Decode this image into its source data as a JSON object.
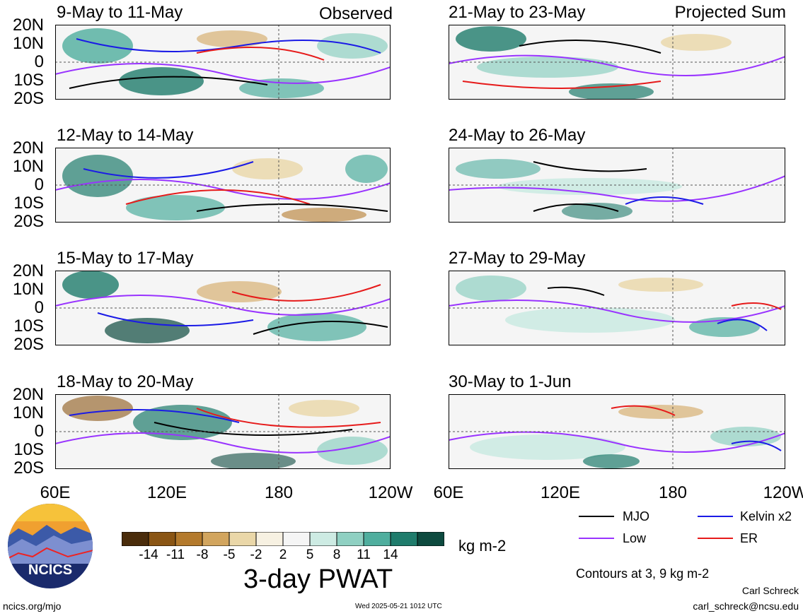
{
  "panels_left": [
    {
      "title": "9-May to 11-May",
      "tag": "Observed"
    },
    {
      "title": "12-May to 14-May",
      "tag": ""
    },
    {
      "title": "15-May to 17-May",
      "tag": ""
    },
    {
      "title": "18-May to 20-May",
      "tag": ""
    }
  ],
  "panels_right": [
    {
      "title": "21-May to 23-May",
      "tag": "Projected Sum"
    },
    {
      "title": "24-May to 26-May",
      "tag": ""
    },
    {
      "title": "27-May to 29-May",
      "tag": ""
    },
    {
      "title": "30-May to 1-Jun",
      "tag": ""
    }
  ],
  "lat_labels": [
    "20N",
    "10N",
    "0",
    "10S",
    "20S"
  ],
  "lon_labels": [
    "60E",
    "120E",
    "180",
    "120W"
  ],
  "lon_labels_right": [
    "60E",
    "120E",
    "180",
    "120W"
  ],
  "colorbar": {
    "ticks": [
      "-14",
      "-11",
      "-8",
      "-5",
      "-2",
      "2",
      "5",
      "8",
      "11",
      "14"
    ],
    "colors": [
      "#4a2c0b",
      "#8a5514",
      "#b47a2c",
      "#d2a55e",
      "#ead7a8",
      "#f7f1e2",
      "#f5f5f5",
      "#cdebe3",
      "#8fd0c2",
      "#4fae9e",
      "#1f7c6c",
      "#0d4a3f"
    ],
    "units": "kg m-2",
    "title": "3-day PWAT"
  },
  "legend": [
    {
      "label": "MJO",
      "color": "#000000"
    },
    {
      "label": "Kelvin x2",
      "color": "#1a1ae6"
    },
    {
      "label": "Low",
      "color": "#9933ff"
    },
    {
      "label": "ER",
      "color": "#e61a1a"
    }
  ],
  "contour_note": "Contours at 3, 9 kg m-2",
  "author": "Carl Schreck",
  "email": "carl_schreck@ncsu.edu",
  "site": "ncics.org/mjo",
  "timestamp": "Wed 2025-05-21 1012 UTC",
  "logo_text": "NCICS"
}
